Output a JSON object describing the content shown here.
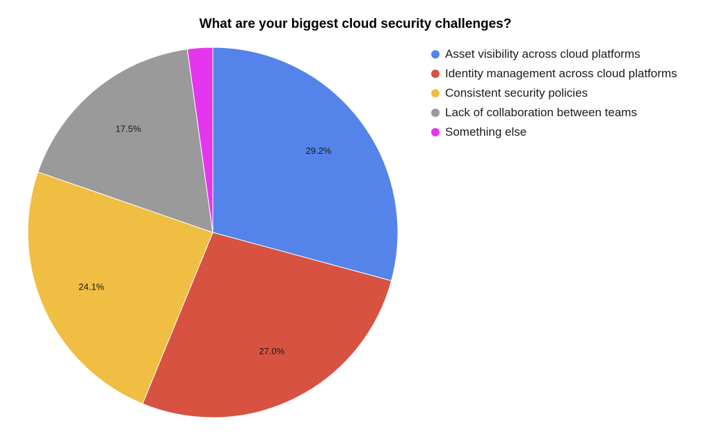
{
  "chart_data": {
    "type": "pie",
    "title": "What are your biggest cloud security challenges?",
    "slices": [
      {
        "label": "Asset visibility across cloud platforms",
        "value": 29.2,
        "value_label": "29.2%",
        "color": "#5484EA"
      },
      {
        "label": "Identity management across cloud platforms",
        "value": 27.0,
        "value_label": "27.0%",
        "color": "#D75241"
      },
      {
        "label": "Consistent security policies",
        "value": 24.1,
        "value_label": "24.1%",
        "color": "#F0BE42"
      },
      {
        "label": "Lack of collaboration between teams",
        "value": 17.5,
        "value_label": "17.5%",
        "color": "#9A9A9A"
      },
      {
        "label": "Something else",
        "value": 2.2,
        "value_label": "",
        "color": "#E535EF"
      }
    ],
    "legend_position": "right"
  }
}
